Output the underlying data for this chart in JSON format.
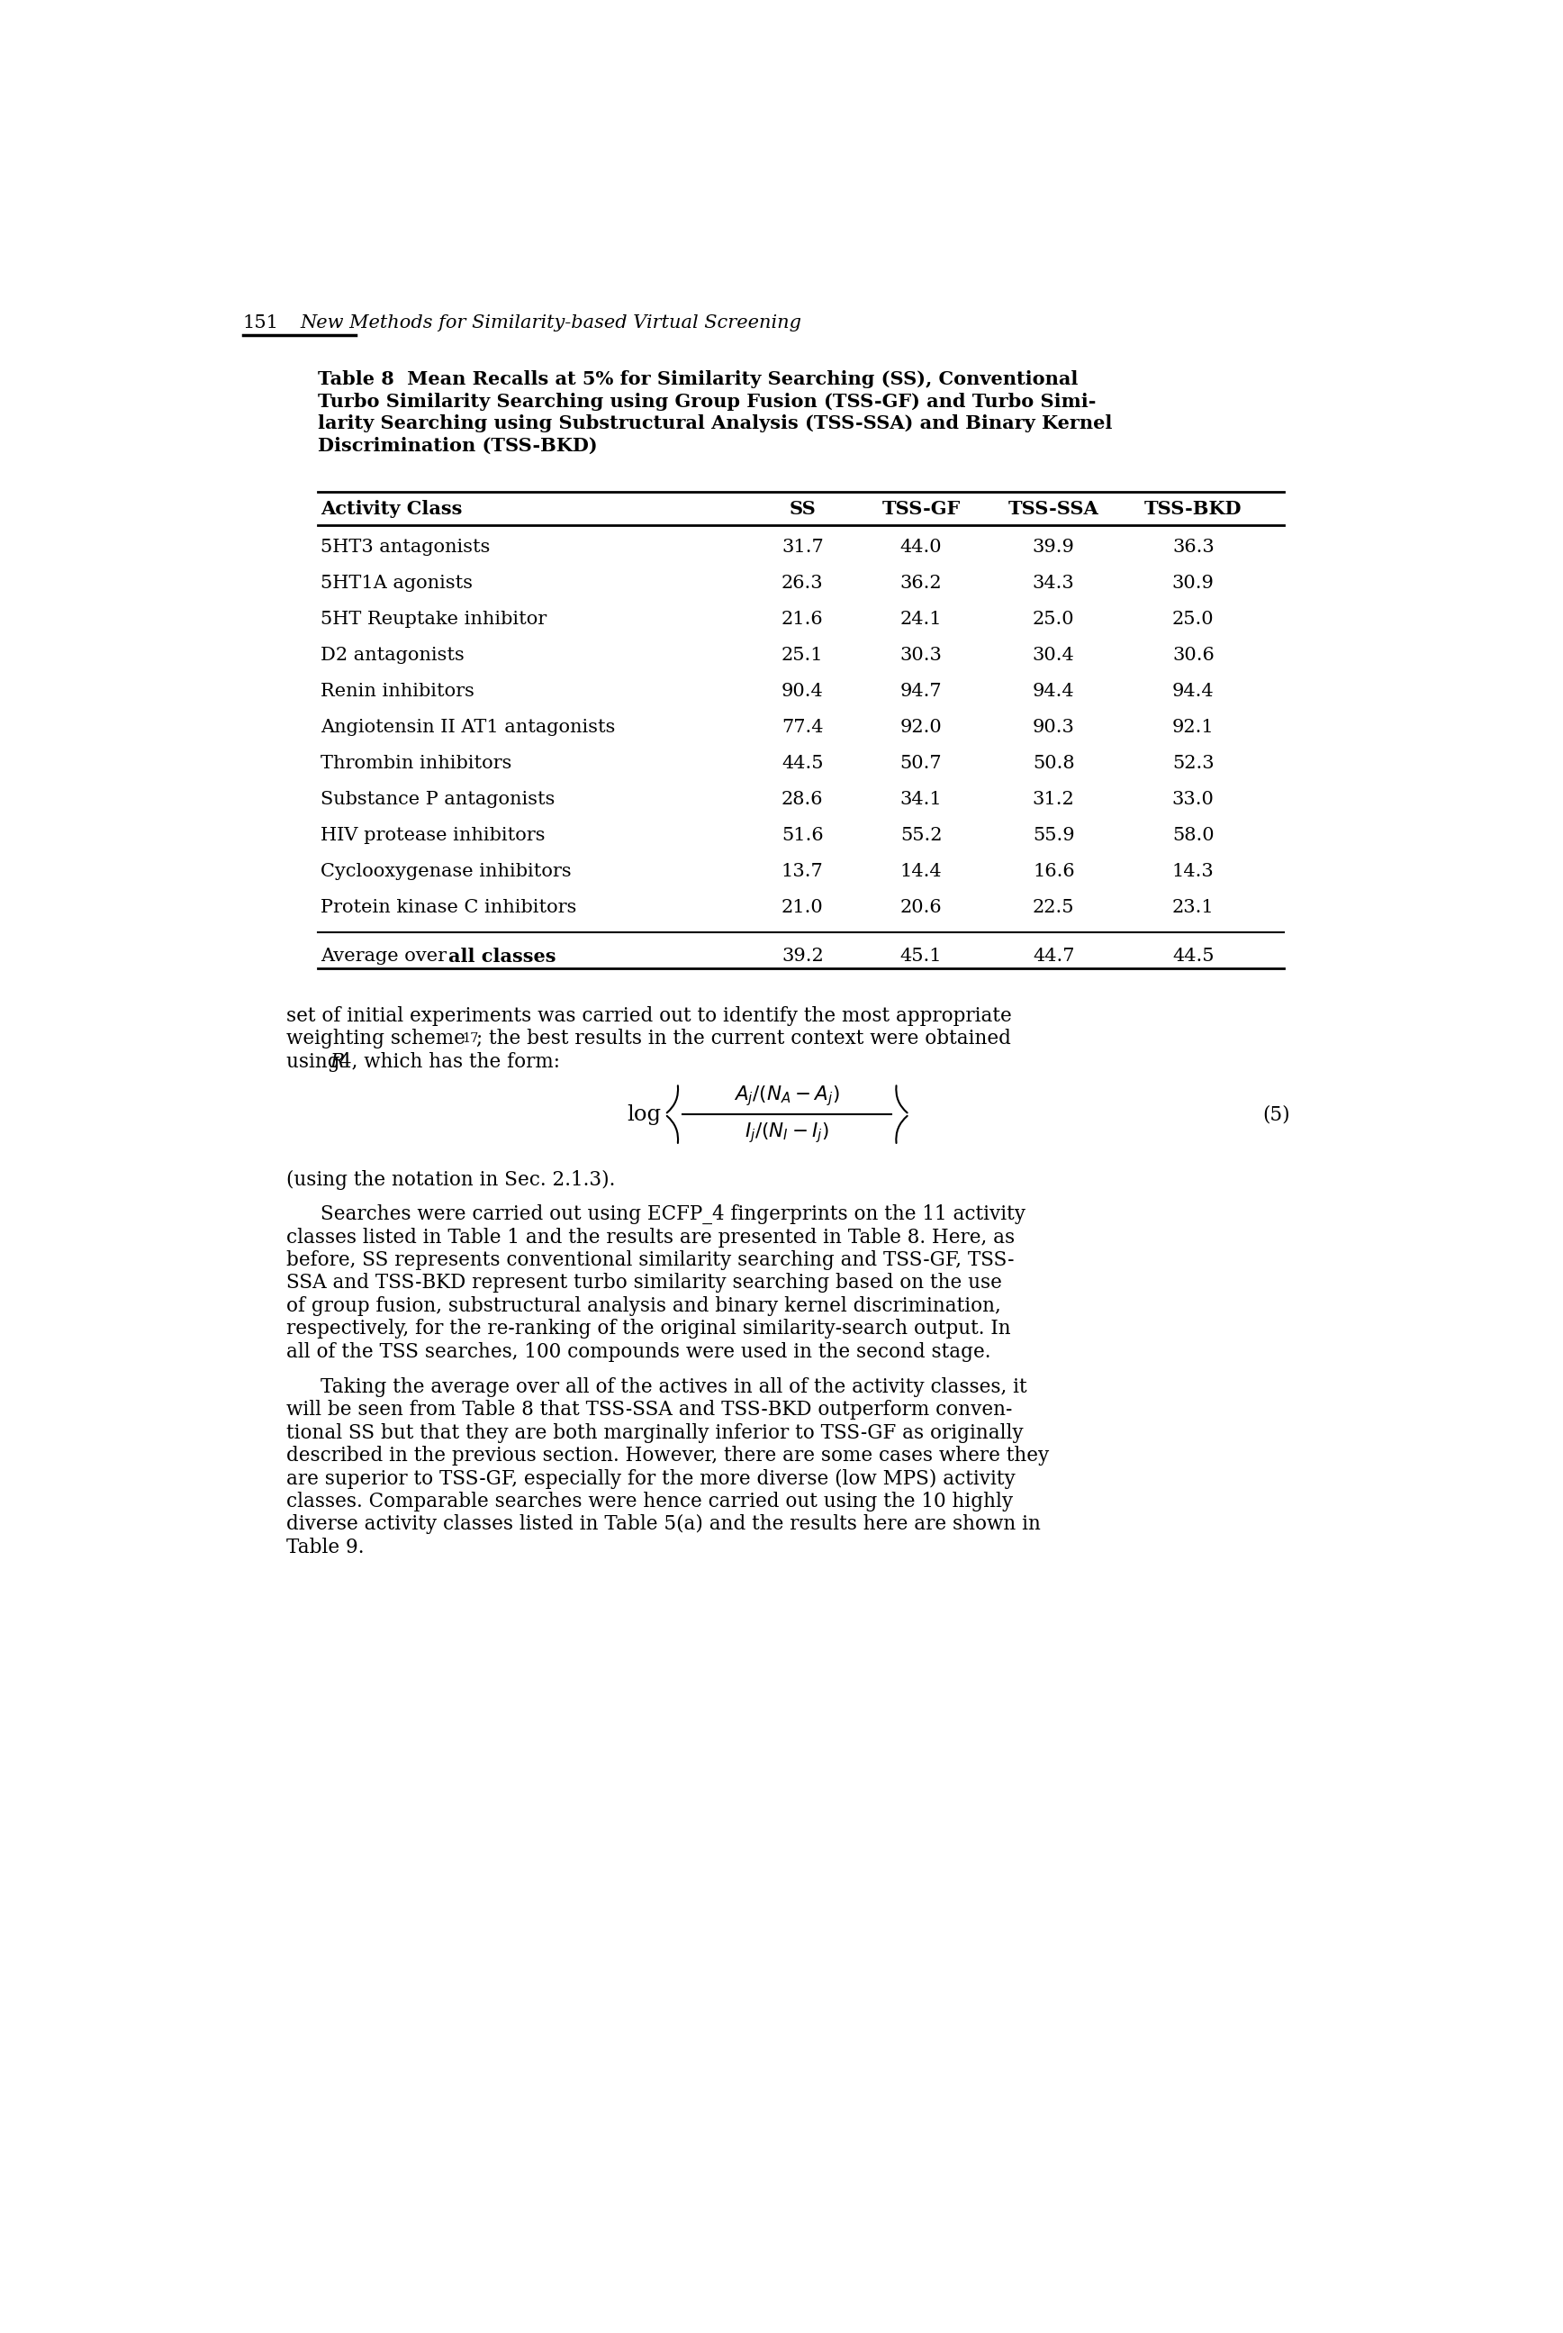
{
  "page_number": "151",
  "page_header": "New Methods for Similarity-based Virtual Screening",
  "caption_lines": [
    "Table 8  Mean Recalls at 5% for Similarity Searching (SS), Conventional",
    "Turbo Similarity Searching using Group Fusion (TSS-GF) and Turbo Simi-",
    "larity Searching using Substructural Analysis (TSS-SSA) and Binary Kernel",
    "Discrimination (TSS-BKD)"
  ],
  "table_headers": [
    "Activity Class",
    "SS",
    "TSS-GF",
    "TSS-SSA",
    "TSS-BKD"
  ],
  "table_rows": [
    [
      "5HT3 antagonists",
      "31.7",
      "44.0",
      "39.9",
      "36.3"
    ],
    [
      "5HT1A agonists",
      "26.3",
      "36.2",
      "34.3",
      "30.9"
    ],
    [
      "5HT Reuptake inhibitor",
      "21.6",
      "24.1",
      "25.0",
      "25.0"
    ],
    [
      "D2 antagonists",
      "25.1",
      "30.3",
      "30.4",
      "30.6"
    ],
    [
      "Renin inhibitors",
      "90.4",
      "94.7",
      "94.4",
      "94.4"
    ],
    [
      "Angiotensin II AT1 antagonists",
      "77.4",
      "92.0",
      "90.3",
      "92.1"
    ],
    [
      "Thrombin inhibitors",
      "44.5",
      "50.7",
      "50.8",
      "52.3"
    ],
    [
      "Substance P antagonists",
      "28.6",
      "34.1",
      "31.2",
      "33.0"
    ],
    [
      "HIV protease inhibitors",
      "51.6",
      "55.2",
      "55.9",
      "58.0"
    ],
    [
      "Cyclooxygenase inhibitors",
      "13.7",
      "14.4",
      "16.6",
      "14.3"
    ],
    [
      "Protein kinase C inhibitors",
      "21.0",
      "20.6",
      "22.5",
      "23.1"
    ]
  ],
  "average_row": [
    "Average over all classes",
    "39.2",
    "45.1",
    "44.7",
    "44.5"
  ],
  "formula_number": "(5)",
  "body_text_2": "(using the notation in Sec. 2.1.3).",
  "paragraph2_lines": [
    "Searches were carried out using ECFP_4 fingerprints on the 11 activity",
    "classes listed in Table 1 and the results are presented in Table 8. Here, as",
    "before, SS represents conventional similarity searching and TSS-GF, TSS-",
    "SSA and TSS-BKD represent turbo similarity searching based on the use",
    "of group fusion, substructural analysis and binary kernel discrimination,",
    "respectively, for the re-ranking of the original similarity-search output. In",
    "all of the TSS searches, 100 compounds were used in the second stage."
  ],
  "paragraph3_lines": [
    "Taking the average over all of the actives in all of the activity classes, it",
    "will be seen from Table 8 that TSS-SSA and TSS-BKD outperform conven-",
    "tional SS but that they are both marginally inferior to TSS-GF as originally",
    "described in the previous section. However, there are some cases where they",
    "are superior to TSS-GF, especially for the more diverse (low MPS) activity",
    "classes. Comparable searches were hence carried out using the 10 highly",
    "diverse activity classes listed in Table 5(a) and the results here are shown in",
    "Table 9."
  ]
}
